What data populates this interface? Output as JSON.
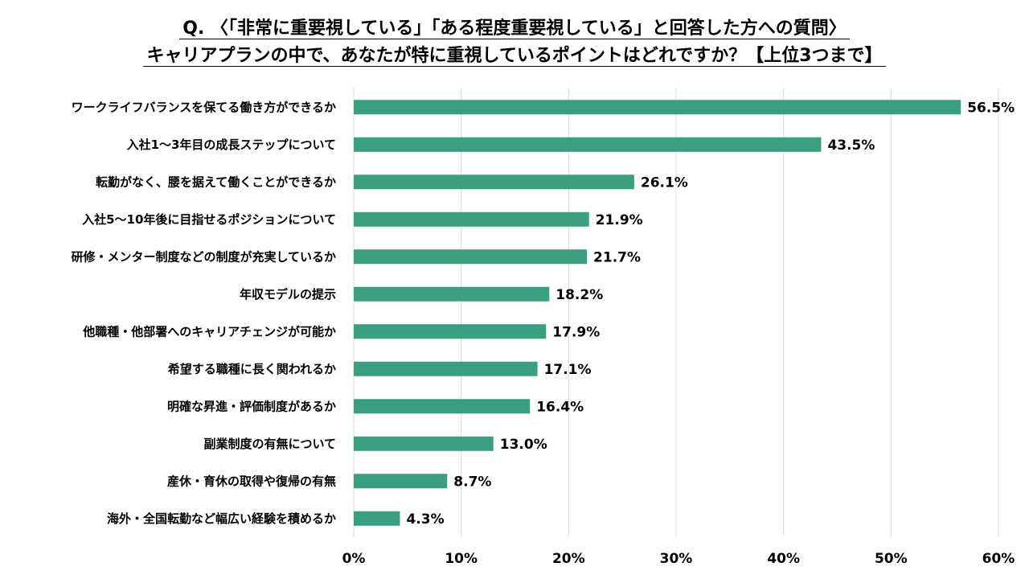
{
  "header": {
    "title_line1": "Q. 〈「非常に重要視している」「ある程度重要視している」と回答した方への質問〉",
    "title_line2": "キャリアプランの中で、あなたが特に重視しているポイントはどれですか？【上位3つまで】"
  },
  "chart_data": {
    "type": "bar",
    "orientation": "horizontal",
    "categories": [
      "ワークライフバランスを保てる働き方ができるか",
      "入社1～3年目の成長ステップについて",
      "転勤がなく、腰を据えて働くことができるか",
      "入社5～10年後に目指せるポジションについて",
      "研修・メンター制度などの制度が充実しているか",
      "年収モデルの提示",
      "他職種・他部署へのキャリアチェンジが可能か",
      "希望する職種に長く関われるか",
      "明確な昇進・評価制度があるか",
      "副業制度の有無について",
      "産休・育休の取得や復帰の有無",
      "海外・全国転勤など幅広い経験を積めるか"
    ],
    "values": [
      56.5,
      43.5,
      26.1,
      21.9,
      21.7,
      18.2,
      17.9,
      17.1,
      16.4,
      13.0,
      8.7,
      4.3
    ],
    "value_labels": [
      "56.5%",
      "43.5%",
      "26.1%",
      "21.9%",
      "21.7%",
      "18.2%",
      "17.9%",
      "17.1%",
      "16.4%",
      "13.0%",
      "8.7%",
      "4.3%"
    ],
    "xlim": [
      0,
      60
    ],
    "x_ticks": [
      "0%",
      "10%",
      "20%",
      "30%",
      "40%",
      "50%",
      "60%"
    ],
    "grid": true,
    "bar_color": "#3a9e80"
  }
}
